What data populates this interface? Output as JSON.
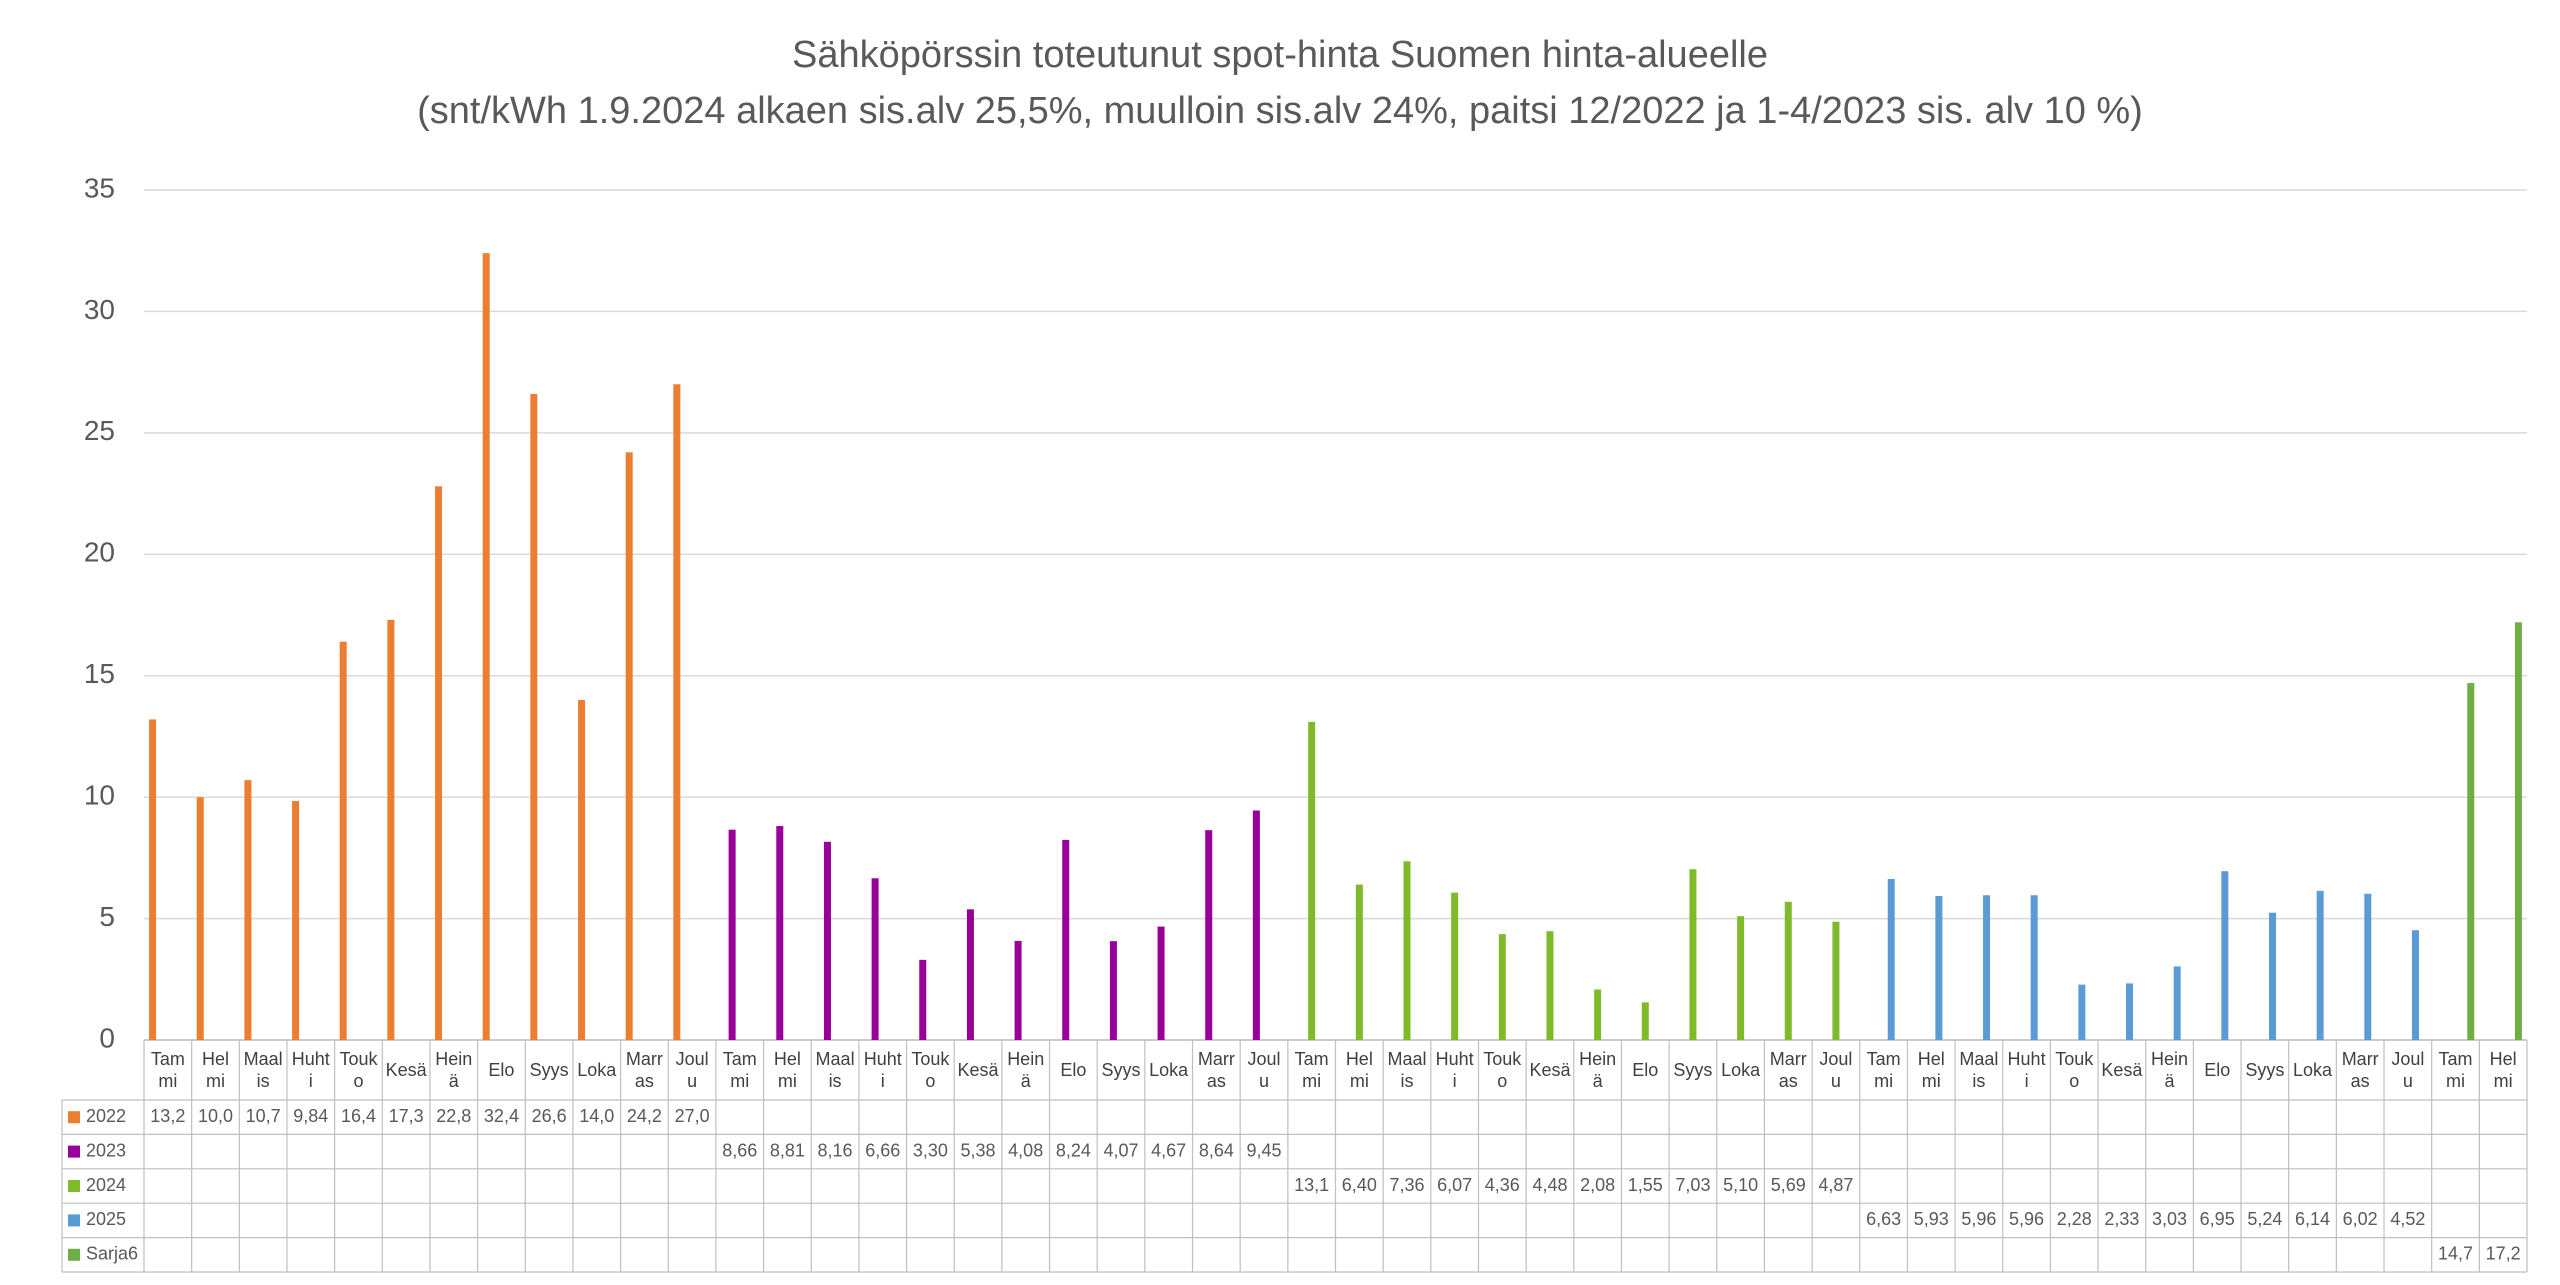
{
  "chart_data": {
    "type": "bar",
    "title": "Sähköpörssin toteutunut spot-hinta Suomen hinta-alueelle",
    "subtitle": "(snt/kWh 1.9.2024 alkaen sis.alv 25,5%, muulloin sis.alv 24%, paitsi 12/2022 ja 1-4/2023 sis. alv 10 %)",
    "categories": [
      "Tammi",
      "Helmi",
      "Maalis",
      "Huhti",
      "Touko",
      "Kesä",
      "Heinä",
      "Elo",
      "Syys",
      "Loka",
      "Marras",
      "Joulu",
      "Tammi",
      "Helmi",
      "Maalis",
      "Huhti",
      "Touko",
      "Kesä",
      "Heinä",
      "Elo",
      "Syys",
      "Loka",
      "Marras",
      "Joulu",
      "Tammi",
      "Helmi",
      "Maalis",
      "Huhti",
      "Touko",
      "Kesä",
      "Heinä",
      "Elo",
      "Syys",
      "Loka",
      "Marras",
      "Joulu",
      "Tammi",
      "Helmi",
      "Maalis",
      "Huhti",
      "Touko",
      "Kesä",
      "Heinä",
      "Elo",
      "Syys",
      "Loka",
      "Marras",
      "Joulu",
      "Tammi",
      "Helmi"
    ],
    "series": [
      {
        "name": "2022",
        "color": "#ed7d31",
        "values": [
          13.2,
          10.0,
          10.7,
          9.84,
          16.4,
          17.3,
          22.8,
          32.4,
          26.6,
          14.0,
          24.2,
          27.0,
          null,
          null,
          null,
          null,
          null,
          null,
          null,
          null,
          null,
          null,
          null,
          null,
          null,
          null,
          null,
          null,
          null,
          null,
          null,
          null,
          null,
          null,
          null,
          null,
          null,
          null,
          null,
          null,
          null,
          null,
          null,
          null,
          null,
          null,
          null,
          null,
          null,
          null
        ],
        "value_labels": [
          "13,2",
          "10,0",
          "10,7",
          "9,84",
          "16,4",
          "17,3",
          "22,8",
          "32,4",
          "26,6",
          "14,0",
          "24,2",
          "27,0",
          null,
          null,
          null,
          null,
          null,
          null,
          null,
          null,
          null,
          null,
          null,
          null,
          null,
          null,
          null,
          null,
          null,
          null,
          null,
          null,
          null,
          null,
          null,
          null,
          null,
          null,
          null,
          null,
          null,
          null,
          null,
          null,
          null,
          null,
          null,
          null,
          null,
          null
        ]
      },
      {
        "name": "2023",
        "color": "#990099",
        "values": [
          null,
          null,
          null,
          null,
          null,
          null,
          null,
          null,
          null,
          null,
          null,
          null,
          8.66,
          8.81,
          8.16,
          6.66,
          3.3,
          5.38,
          4.08,
          8.24,
          4.07,
          4.67,
          8.64,
          9.45,
          null,
          null,
          null,
          null,
          null,
          null,
          null,
          null,
          null,
          null,
          null,
          null,
          null,
          null,
          null,
          null,
          null,
          null,
          null,
          null,
          null,
          null,
          null,
          null,
          null,
          null
        ],
        "value_labels": [
          null,
          null,
          null,
          null,
          null,
          null,
          null,
          null,
          null,
          null,
          null,
          null,
          "8,66",
          "8,81",
          "8,16",
          "6,66",
          "3,30",
          "5,38",
          "4,08",
          "8,24",
          "4,07",
          "4,67",
          "8,64",
          "9,45",
          null,
          null,
          null,
          null,
          null,
          null,
          null,
          null,
          null,
          null,
          null,
          null,
          null,
          null,
          null,
          null,
          null,
          null,
          null,
          null,
          null,
          null,
          null,
          null,
          null,
          null
        ]
      },
      {
        "name": "2024",
        "color": "#7fba2b",
        "values": [
          null,
          null,
          null,
          null,
          null,
          null,
          null,
          null,
          null,
          null,
          null,
          null,
          null,
          null,
          null,
          null,
          null,
          null,
          null,
          null,
          null,
          null,
          null,
          null,
          13.1,
          6.4,
          7.36,
          6.07,
          4.36,
          4.48,
          2.08,
          1.55,
          7.03,
          5.1,
          5.69,
          4.87,
          null,
          null,
          null,
          null,
          null,
          null,
          null,
          null,
          null,
          null,
          null,
          null,
          null,
          null
        ],
        "value_labels": [
          null,
          null,
          null,
          null,
          null,
          null,
          null,
          null,
          null,
          null,
          null,
          null,
          null,
          null,
          null,
          null,
          null,
          null,
          null,
          null,
          null,
          null,
          null,
          null,
          "13,1",
          "6,40",
          "7,36",
          "6,07",
          "4,36",
          "4,48",
          "2,08",
          "1,55",
          "7,03",
          "5,10",
          "5,69",
          "4,87",
          null,
          null,
          null,
          null,
          null,
          null,
          null,
          null,
          null,
          null,
          null,
          null,
          null,
          null
        ]
      },
      {
        "name": "2025",
        "color": "#5b9bd5",
        "values": [
          null,
          null,
          null,
          null,
          null,
          null,
          null,
          null,
          null,
          null,
          null,
          null,
          null,
          null,
          null,
          null,
          null,
          null,
          null,
          null,
          null,
          null,
          null,
          null,
          null,
          null,
          null,
          null,
          null,
          null,
          null,
          null,
          null,
          null,
          null,
          null,
          6.63,
          5.93,
          5.96,
          5.96,
          2.28,
          2.33,
          3.03,
          6.95,
          5.24,
          6.14,
          6.02,
          4.52,
          null,
          null
        ],
        "value_labels": [
          null,
          null,
          null,
          null,
          null,
          null,
          null,
          null,
          null,
          null,
          null,
          null,
          null,
          null,
          null,
          null,
          null,
          null,
          null,
          null,
          null,
          null,
          null,
          null,
          null,
          null,
          null,
          null,
          null,
          null,
          null,
          null,
          null,
          null,
          null,
          null,
          "6,63",
          "5,93",
          "5,96",
          "5,96",
          "2,28",
          "2,33",
          "3,03",
          "6,95",
          "5,24",
          "6,14",
          "6,02",
          "4,52",
          null,
          null
        ]
      },
      {
        "name": "Sarja6",
        "color": "#70ad47",
        "values": [
          null,
          null,
          null,
          null,
          null,
          null,
          null,
          null,
          null,
          null,
          null,
          null,
          null,
          null,
          null,
          null,
          null,
          null,
          null,
          null,
          null,
          null,
          null,
          null,
          null,
          null,
          null,
          null,
          null,
          null,
          null,
          null,
          null,
          null,
          null,
          null,
          null,
          null,
          null,
          null,
          null,
          null,
          null,
          null,
          null,
          null,
          null,
          null,
          14.7,
          17.2
        ],
        "value_labels": [
          null,
          null,
          null,
          null,
          null,
          null,
          null,
          null,
          null,
          null,
          null,
          null,
          null,
          null,
          null,
          null,
          null,
          null,
          null,
          null,
          null,
          null,
          null,
          null,
          null,
          null,
          null,
          null,
          null,
          null,
          null,
          null,
          null,
          null,
          null,
          null,
          null,
          null,
          null,
          null,
          null,
          null,
          null,
          null,
          null,
          null,
          null,
          null,
          "14,7",
          "17,2"
        ]
      }
    ],
    "ylim": [
      0,
      35
    ],
    "yticks": [
      0,
      5,
      10,
      15,
      20,
      25,
      30,
      35
    ],
    "grid": true
  }
}
